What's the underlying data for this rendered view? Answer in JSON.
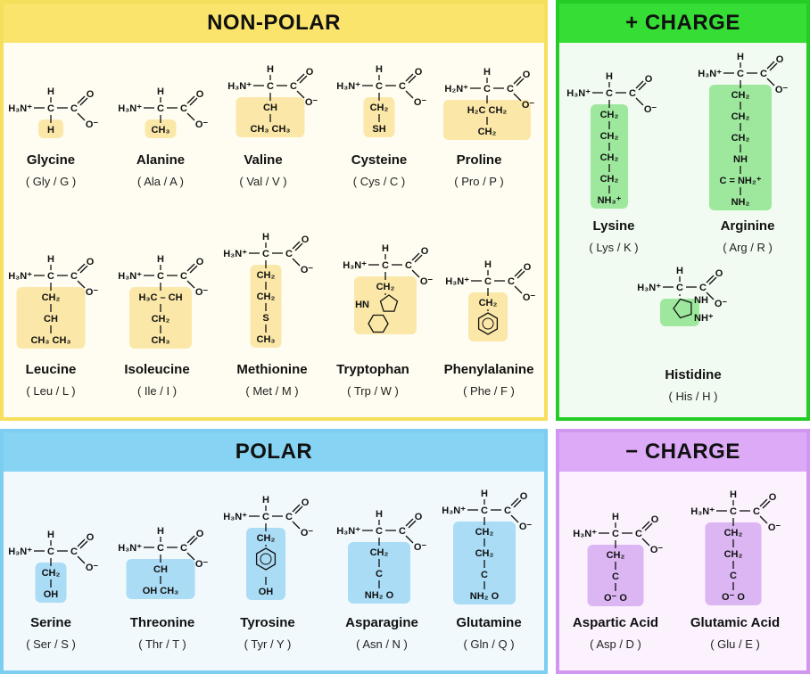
{
  "colors": {
    "nonpolar": {
      "border": "#f6df5a",
      "header": "#fbe46c",
      "bg": "#fffdf1",
      "highlight": "#fbe8a8"
    },
    "positive": {
      "border": "#25cc25",
      "header": "#35dd35",
      "bg": "#f1fbf1",
      "highlight": "#9ee89e"
    },
    "polar": {
      "border": "#7ccdf0",
      "header": "#86d3f3",
      "bg": "#f1f9fd",
      "highlight": "#aadcf5"
    },
    "negative": {
      "border": "#cf97ef",
      "header": "#dcaaf6",
      "bg": "#fbf2fe",
      "highlight": "#dcb6f3"
    }
  },
  "panels": {
    "nonpolar": {
      "title": "NON-POLAR",
      "acids": [
        {
          "name": "Glycine",
          "abbr": "( Gly / G )",
          "amine": "H₃N⁺",
          "side": [
            {
              "t": "H"
            }
          ]
        },
        {
          "name": "Alanine",
          "abbr": "( Ala / A )",
          "amine": "H₃N⁺",
          "side": [
            {
              "t": "CH₃"
            }
          ]
        },
        {
          "name": "Valine",
          "abbr": "( Val / V )",
          "amine": "H₃N⁺",
          "side": [
            {
              "t": "CH"
            },
            {
              "t": "CH₃   CH₃"
            }
          ]
        },
        {
          "name": "Cysteine",
          "abbr": "( Cys / C )",
          "amine": "H₃N⁺",
          "side": [
            {
              "t": "CH₂"
            },
            {
              "t": "SH"
            }
          ]
        },
        {
          "name": "Proline",
          "abbr": "( Pro / P )",
          "amine": "H₂N⁺",
          "side": [
            {
              "t": "H₂C      CH₂"
            },
            {
              "t": "CH₂"
            }
          ]
        },
        {
          "name": "Leucine",
          "abbr": "( Leu / L )",
          "amine": "H₃N⁺",
          "side": [
            {
              "t": "CH₂"
            },
            {
              "t": "CH"
            },
            {
              "t": "CH₃   CH₃"
            }
          ]
        },
        {
          "name": "Isoleucine",
          "abbr": "( Ile / I )",
          "amine": "H₃N⁺",
          "side": [
            {
              "t": "H₃C – CH"
            },
            {
              "t": "CH₂"
            },
            {
              "t": "CH₃"
            }
          ]
        },
        {
          "name": "Methionine",
          "abbr": "( Met / M )",
          "amine": "H₃N⁺",
          "side": [
            {
              "t": "CH₂"
            },
            {
              "t": "CH₂"
            },
            {
              "t": "S"
            },
            {
              "t": "CH₃"
            }
          ]
        },
        {
          "name": "Tryptophan",
          "abbr": "( Trp / W )",
          "amine": "H₃N⁺",
          "side": [
            {
              "t": "CH₂"
            },
            {
              "ring": "indole",
              "label": "HN"
            }
          ]
        },
        {
          "name": "Phenylalanine",
          "abbr": "( Phe / F )",
          "amine": "H₃N⁺",
          "side": [
            {
              "t": "CH₂"
            },
            {
              "ring": "benzene"
            }
          ]
        }
      ]
    },
    "positive": {
      "title": "+ CHARGE",
      "acids": [
        {
          "name": "Lysine",
          "abbr": "( Lys / K )",
          "amine": "H₃N⁺",
          "side": [
            {
              "t": "CH₂"
            },
            {
              "t": "CH₂"
            },
            {
              "t": "CH₂"
            },
            {
              "t": "CH₂"
            },
            {
              "t": "NH₃⁺"
            }
          ]
        },
        {
          "name": "Arginine",
          "abbr": "( Arg / R )",
          "amine": "H₃N⁺",
          "side": [
            {
              "t": "CH₂"
            },
            {
              "t": "CH₂"
            },
            {
              "t": "CH₂"
            },
            {
              "t": "NH"
            },
            {
              "t": "C = NH₂⁺"
            },
            {
              "t": "NH₂"
            }
          ]
        },
        {
          "name": "Histidine",
          "abbr": "( His / H )",
          "amine": "H₃N⁺",
          "side": [
            {
              "ring": "imidazole",
              "label": "NH",
              "label2": "NH⁺"
            }
          ]
        }
      ]
    },
    "polar": {
      "title": "POLAR",
      "acids": [
        {
          "name": "Serine",
          "abbr": "( Ser / S )",
          "amine": "H₃N⁺",
          "side": [
            {
              "t": "CH₂"
            },
            {
              "t": "OH"
            }
          ]
        },
        {
          "name": "Threonine",
          "abbr": "( Thr / T )",
          "amine": "H₃N⁺",
          "side": [
            {
              "t": "CH"
            },
            {
              "t": "OH    CH₃"
            }
          ]
        },
        {
          "name": "Tyrosine",
          "abbr": "( Tyr / Y )",
          "amine": "H₃N⁺",
          "side": [
            {
              "t": "CH₂"
            },
            {
              "ring": "benzene"
            },
            {
              "t": "OH"
            }
          ]
        },
        {
          "name": "Asparagine",
          "abbr": "( Asn / N )",
          "amine": "H₃N⁺",
          "side": [
            {
              "t": "CH₂"
            },
            {
              "t": "C"
            },
            {
              "t": "NH₂    O"
            }
          ]
        },
        {
          "name": "Glutamine",
          "abbr": "( Gln / Q )",
          "amine": "H₃N⁺",
          "side": [
            {
              "t": "CH₂"
            },
            {
              "t": "CH₂"
            },
            {
              "t": "C"
            },
            {
              "t": "NH₂    O"
            }
          ]
        }
      ]
    },
    "negative": {
      "title": "− CHARGE",
      "acids": [
        {
          "name": "Aspartic Acid",
          "abbr": "( Asp / D )",
          "amine": "H₃N⁺",
          "side": [
            {
              "t": "CH₂"
            },
            {
              "t": "C"
            },
            {
              "t": "O⁻    O"
            }
          ]
        },
        {
          "name": "Glutamic Acid",
          "abbr": "( Glu / E )",
          "amine": "H₃N⁺",
          "side": [
            {
              "t": "CH₂"
            },
            {
              "t": "CH₂"
            },
            {
              "t": "C"
            },
            {
              "t": "O⁻    O"
            }
          ]
        }
      ]
    }
  },
  "backbone": {
    "alpha_h": "H",
    "alpha_c": "C",
    "carboxyl_c": "C",
    "carbonyl_o": "O",
    "carboxylate_o": "O⁻"
  }
}
